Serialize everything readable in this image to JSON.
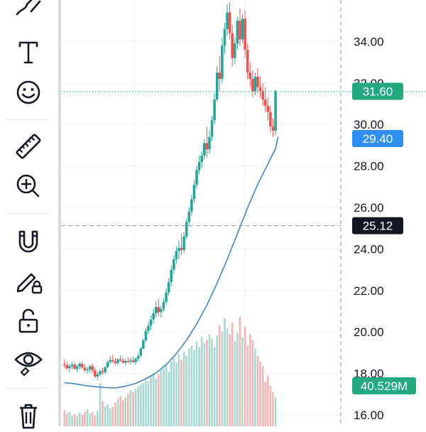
{
  "toolbar": {
    "tools": [
      {
        "name": "brush-icon",
        "label": "Brush"
      },
      {
        "name": "text-icon",
        "label": "Text"
      },
      {
        "name": "emoji-icon",
        "label": "Emoji"
      },
      {
        "name": "ruler-icon",
        "label": "Measure"
      },
      {
        "name": "zoom-in-icon",
        "label": "Zoom in"
      },
      {
        "name": "magnet-icon",
        "label": "Magnet"
      },
      {
        "name": "lock-drawings-icon",
        "label": "Lock drawings"
      },
      {
        "name": "unlock-icon",
        "label": "Unlock"
      },
      {
        "name": "eye-icon",
        "label": "Hide drawings"
      },
      {
        "name": "trash-icon",
        "label": "Remove drawings"
      }
    ]
  },
  "chart_data": {
    "type": "candlestick",
    "price_axis": {
      "ticks": [
        "34.00",
        "32.00",
        "30.00",
        "28.00",
        "26.00",
        "24.00",
        "22.00",
        "20.00",
        "18.00",
        "16.00"
      ],
      "ylim": [
        15.45,
        36.0
      ]
    },
    "grid": true,
    "colors": {
      "up": "#26a69a",
      "down": "#ef5350",
      "up_volume": "#a6d9d2",
      "down_volume": "#f4b4b2",
      "ma": "#3d86c6",
      "last_price": "#22a97f",
      "ma_badge": "#2f8ff0",
      "crosshair_badge": "#131722",
      "volume_badge": "#22a97f"
    },
    "badges": {
      "last_price": "31.60",
      "ma_value": "29.40",
      "crosshair_price": "25.12",
      "volume": "40.529M"
    },
    "levels": {
      "last_price": 31.6,
      "crosshair_price": 25.12
    },
    "visible_bars": 110,
    "candles": [
      [
        18.45,
        18.66,
        18.25,
        18.4
      ],
      [
        18.4,
        18.56,
        18.15,
        18.25
      ],
      [
        18.25,
        18.46,
        18.05,
        18.35
      ],
      [
        18.35,
        18.55,
        18.2,
        18.42
      ],
      [
        18.42,
        18.56,
        18.18,
        18.22
      ],
      [
        18.22,
        18.44,
        18.04,
        18.32
      ],
      [
        18.32,
        18.55,
        18.18,
        18.46
      ],
      [
        18.46,
        18.58,
        18.2,
        18.28
      ],
      [
        18.28,
        18.45,
        18.05,
        18.15
      ],
      [
        18.15,
        18.33,
        17.98,
        18.2
      ],
      [
        18.2,
        18.42,
        18.02,
        18.35
      ],
      [
        18.35,
        18.48,
        18.02,
        18.15
      ],
      [
        18.15,
        18.3,
        17.78,
        17.85
      ],
      [
        17.85,
        18.05,
        17.7,
        17.95
      ],
      [
        17.95,
        18.22,
        17.85,
        18.1
      ],
      [
        18.1,
        18.28,
        17.95,
        18.05
      ],
      [
        18.05,
        18.36,
        17.98,
        18.3
      ],
      [
        18.3,
        18.62,
        18.25,
        18.55
      ],
      [
        18.55,
        18.85,
        18.45,
        18.65
      ],
      [
        18.65,
        18.9,
        18.5,
        18.58
      ],
      [
        18.58,
        18.75,
        18.4,
        18.5
      ],
      [
        18.5,
        18.74,
        18.38,
        18.68
      ],
      [
        18.68,
        18.85,
        18.55,
        18.62
      ],
      [
        18.62,
        18.78,
        18.46,
        18.52
      ],
      [
        18.52,
        18.7,
        18.4,
        18.6
      ],
      [
        18.6,
        18.78,
        18.48,
        18.56
      ],
      [
        18.56,
        18.75,
        18.44,
        18.62
      ],
      [
        18.62,
        18.8,
        18.5,
        18.55
      ],
      [
        18.55,
        18.78,
        18.42,
        18.7
      ],
      [
        18.7,
        18.95,
        18.58,
        18.85
      ],
      [
        18.85,
        19.3,
        18.8,
        19.2
      ],
      [
        19.2,
        19.7,
        19.15,
        19.6
      ],
      [
        19.6,
        20.2,
        19.5,
        20.05
      ],
      [
        20.05,
        20.5,
        19.9,
        20.3
      ],
      [
        20.3,
        20.8,
        20.1,
        20.6
      ],
      [
        20.6,
        21.1,
        20.4,
        20.9
      ],
      [
        20.9,
        21.5,
        20.7,
        21.2
      ],
      [
        21.2,
        21.6,
        20.75,
        20.95
      ],
      [
        20.95,
        21.25,
        20.7,
        21.1
      ],
      [
        21.1,
        21.6,
        21.0,
        21.45
      ],
      [
        21.45,
        22.1,
        21.3,
        21.9
      ],
      [
        21.9,
        22.6,
        21.75,
        22.4
      ],
      [
        22.4,
        23.2,
        22.2,
        23.0
      ],
      [
        23.0,
        23.7,
        22.8,
        23.5
      ],
      [
        23.5,
        24.1,
        23.3,
        23.9
      ],
      [
        23.9,
        24.4,
        23.5,
        24.05
      ],
      [
        24.05,
        24.7,
        23.7,
        23.95
      ],
      [
        23.95,
        24.8,
        23.8,
        24.6
      ],
      [
        24.6,
        25.5,
        24.45,
        25.3
      ],
      [
        25.3,
        26.0,
        25.1,
        25.8
      ],
      [
        25.8,
        26.6,
        25.6,
        26.4
      ],
      [
        26.4,
        27.3,
        26.2,
        27.1
      ],
      [
        27.1,
        28.0,
        26.9,
        27.8
      ],
      [
        27.8,
        28.5,
        27.6,
        28.2
      ],
      [
        28.2,
        28.7,
        27.9,
        28.5
      ],
      [
        28.5,
        29.3,
        28.3,
        29.1
      ],
      [
        29.1,
        29.9,
        28.4,
        28.8
      ],
      [
        28.8,
        29.7,
        28.6,
        29.4
      ],
      [
        29.4,
        30.4,
        29.2,
        30.2
      ],
      [
        30.2,
        31.5,
        30.0,
        31.2
      ],
      [
        31.2,
        32.8,
        31.1,
        32.5
      ],
      [
        32.5,
        33.3,
        31.6,
        32.2
      ],
      [
        32.2,
        34.2,
        32.0,
        33.8
      ],
      [
        33.8,
        34.9,
        33.4,
        34.6
      ],
      [
        34.6,
        35.8,
        34.3,
        35.4
      ],
      [
        35.4,
        35.9,
        34.1,
        34.4
      ],
      [
        34.4,
        34.8,
        32.8,
        33.2
      ],
      [
        33.2,
        34.2,
        32.9,
        33.9
      ],
      [
        33.9,
        35.2,
        33.6,
        35.0
      ],
      [
        35.0,
        35.6,
        33.8,
        34.1
      ],
      [
        34.1,
        35.3,
        33.9,
        35.1
      ],
      [
        35.1,
        35.5,
        33.2,
        33.6
      ],
      [
        33.6,
        33.9,
        32.2,
        32.5
      ],
      [
        32.5,
        33.0,
        31.8,
        32.2
      ],
      [
        32.2,
        32.6,
        31.3,
        31.6
      ],
      [
        31.6,
        32.5,
        31.4,
        32.3
      ],
      [
        32.3,
        32.7,
        31.5,
        31.8
      ],
      [
        31.8,
        32.3,
        31.3,
        31.6
      ],
      [
        31.6,
        32.0,
        30.9,
        31.2
      ],
      [
        31.2,
        31.8,
        30.6,
        30.9
      ],
      [
        30.9,
        31.3,
        30.2,
        30.6
      ],
      [
        30.6,
        30.9,
        29.6,
        29.9
      ],
      [
        29.9,
        30.3,
        29.4,
        29.7
      ],
      [
        29.7,
        31.7,
        29.5,
        31.6
      ]
    ],
    "volume_millions": [
      22,
      18,
      20,
      15,
      17,
      14,
      19,
      16,
      21,
      24,
      18,
      20,
      15,
      22,
      60,
      35,
      28,
      30,
      25,
      27,
      33,
      38,
      42,
      36,
      40,
      45,
      50,
      48,
      52,
      55,
      58,
      60,
      64,
      62,
      70,
      74,
      66,
      72,
      78,
      80,
      84,
      76,
      90,
      95,
      88,
      100,
      92,
      104,
      98,
      108,
      112,
      106,
      118,
      110,
      124,
      116,
      120,
      128,
      122,
      110,
      126,
      140,
      132,
      150,
      136,
      128,
      144,
      118,
      130,
      152,
      124,
      138,
      112,
      128,
      120,
      108,
      98,
      90,
      84,
      62,
      70,
      56,
      48,
      40
    ],
    "volume_scale_max": 160,
    "ma_points": [
      [
        0,
        17.55
      ],
      [
        4,
        17.5
      ],
      [
        8,
        17.42
      ],
      [
        12,
        17.36
      ],
      [
        16,
        17.32
      ],
      [
        20,
        17.3
      ],
      [
        24,
        17.38
      ],
      [
        28,
        17.52
      ],
      [
        32,
        17.74
      ],
      [
        36,
        18.02
      ],
      [
        40,
        18.42
      ],
      [
        44,
        18.95
      ],
      [
        48,
        19.6
      ],
      [
        52,
        20.38
      ],
      [
        56,
        21.3
      ],
      [
        60,
        22.34
      ],
      [
        64,
        23.5
      ],
      [
        68,
        24.74
      ],
      [
        72,
        25.98
      ],
      [
        76,
        27.12
      ],
      [
        80,
        28.1
      ],
      [
        83,
        28.84
      ],
      [
        84,
        29.4
      ]
    ]
  }
}
